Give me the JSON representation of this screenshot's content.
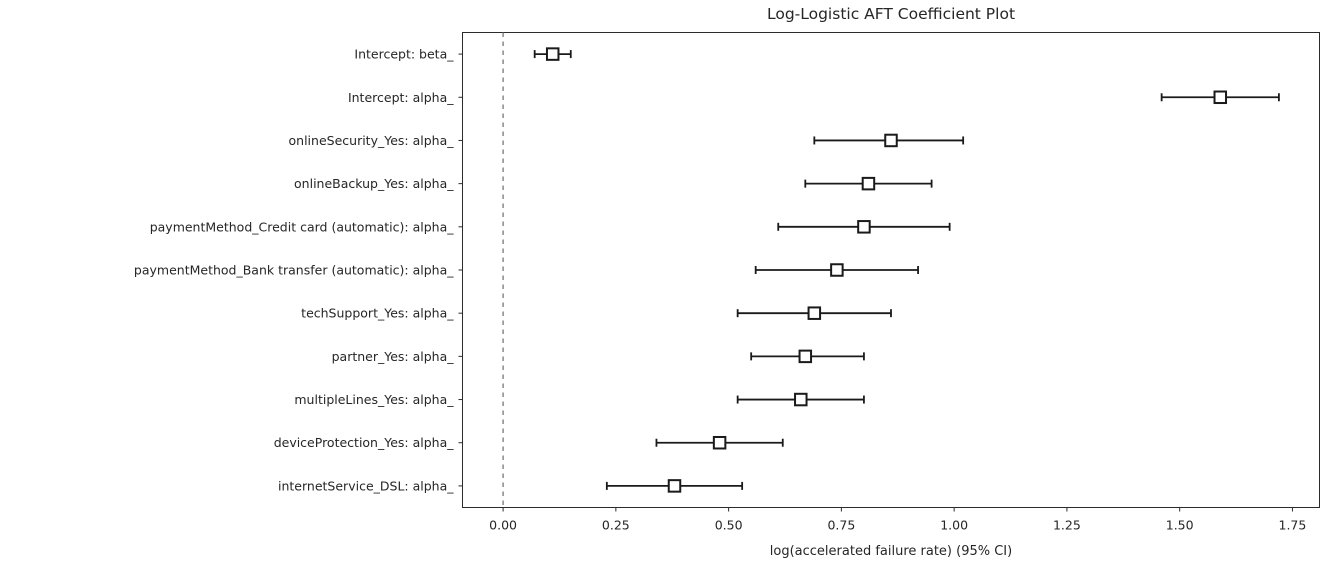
{
  "chart_data": {
    "type": "scatter",
    "subtype": "coefficient-forest-plot",
    "title": "Log-Logistic AFT Coefficient Plot",
    "xlabel": "log(accelerated failure rate) (95% CI)",
    "ylabel": "",
    "orientation": "horizontal",
    "marker": "open-square",
    "grid": false,
    "legend": "none",
    "reference_line": {
      "x": 0,
      "style": "dashed"
    },
    "xlim": [
      -0.09,
      1.81
    ],
    "x_ticks": [
      {
        "value": 0.0,
        "label": "0.00"
      },
      {
        "value": 0.25,
        "label": "0.25"
      },
      {
        "value": 0.5,
        "label": "0.50"
      },
      {
        "value": 0.75,
        "label": "0.75"
      },
      {
        "value": 1.0,
        "label": "1.00"
      },
      {
        "value": 1.25,
        "label": "1.25"
      },
      {
        "value": 1.5,
        "label": "1.50"
      },
      {
        "value": 1.75,
        "label": "1.75"
      }
    ],
    "points": [
      {
        "label": "Intercept: beta_",
        "coef": 0.11,
        "ci_low": 0.07,
        "ci_high": 0.15
      },
      {
        "label": "Intercept: alpha_",
        "coef": 1.59,
        "ci_low": 1.46,
        "ci_high": 1.72
      },
      {
        "label": "onlineSecurity_Yes: alpha_",
        "coef": 0.86,
        "ci_low": 0.69,
        "ci_high": 1.02
      },
      {
        "label": "onlineBackup_Yes: alpha_",
        "coef": 0.81,
        "ci_low": 0.67,
        "ci_high": 0.95
      },
      {
        "label": "paymentMethod_Credit card (automatic): alpha_",
        "coef": 0.8,
        "ci_low": 0.61,
        "ci_high": 0.99
      },
      {
        "label": "paymentMethod_Bank transfer (automatic): alpha_",
        "coef": 0.74,
        "ci_low": 0.56,
        "ci_high": 0.92
      },
      {
        "label": "techSupport_Yes: alpha_",
        "coef": 0.69,
        "ci_low": 0.52,
        "ci_high": 0.86
      },
      {
        "label": "partner_Yes: alpha_",
        "coef": 0.67,
        "ci_low": 0.55,
        "ci_high": 0.8
      },
      {
        "label": "multipleLines_Yes: alpha_",
        "coef": 0.66,
        "ci_low": 0.52,
        "ci_high": 0.8
      },
      {
        "label": "deviceProtection_Yes: alpha_",
        "coef": 0.48,
        "ci_low": 0.34,
        "ci_high": 0.62
      },
      {
        "label": "internetService_DSL: alpha_",
        "coef": 0.38,
        "ci_low": 0.23,
        "ci_high": 0.53
      }
    ],
    "colors": {
      "marker_edge": "#1a1a1a",
      "marker_fill": "#ffffff",
      "error_bar": "#1a1a1a",
      "reference_line": "#777777",
      "spine": "#2b2b2b",
      "tick": "#2b2b2b",
      "text": "#262626",
      "background": "#ffffff"
    }
  }
}
